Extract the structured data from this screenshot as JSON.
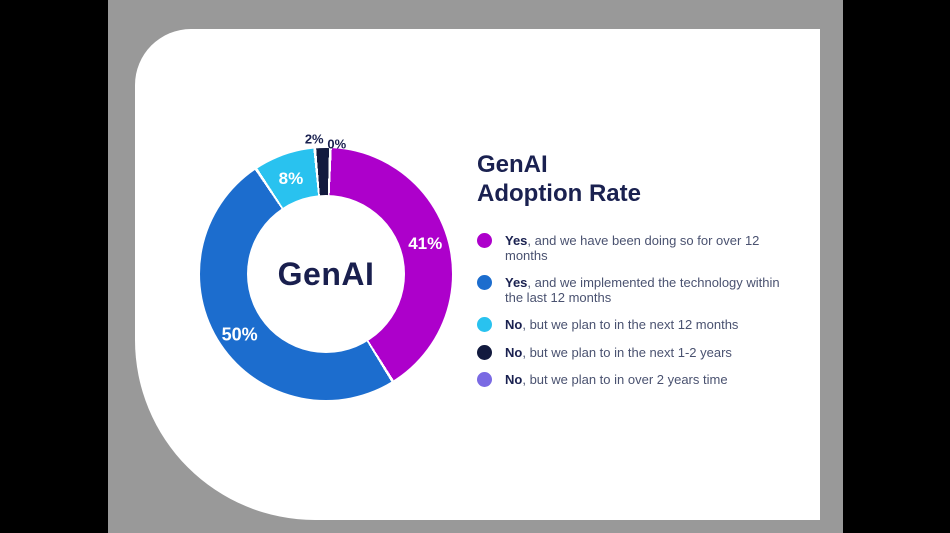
{
  "canvas": {
    "side_bar_color": "#000000",
    "background_color": "#999999",
    "card_color": "#ffffff"
  },
  "chart": {
    "title_line1": "GenAI",
    "title_line2": "Adoption Rate",
    "center_label": "GenAI"
  },
  "chart_data": {
    "type": "pie",
    "style": "donut",
    "title": "GenAI Adoption Rate",
    "center_label": "GenAI",
    "unit": "%",
    "legend_position": "right",
    "slices": [
      {
        "label": "Yes, and we have been doing so for over 12 months",
        "value": 41,
        "display": "41%",
        "color": "#AD00CB"
      },
      {
        "label": "Yes, and we implemented the technology within the last 12 months",
        "value": 50,
        "display": "50%",
        "color": "#1C6DCE"
      },
      {
        "label": "No, but we plan to in the next 12 months",
        "value": 8,
        "display": "8%",
        "color": "#29C2EF"
      },
      {
        "label": "No, but we plan to in the next 1-2 years",
        "value": 2,
        "display": "2%",
        "color": "#121A3E"
      },
      {
        "label": "No, but we plan to in over 2 years time",
        "value": 0,
        "display": "0%",
        "color": "#7A6AE3"
      }
    ]
  },
  "legend": {
    "items": [
      {
        "prefix": "Yes",
        "rest": ", and we have been doing so for over 12 months",
        "color": "#AD00CB"
      },
      {
        "prefix": "Yes",
        "rest": ", and we implemented the technology within the last 12 months",
        "color": "#1C6DCE"
      },
      {
        "prefix": "No",
        "rest": ", but we plan to in the next 12 months",
        "color": "#29C2EF"
      },
      {
        "prefix": "No",
        "rest": ", but we plan to in the next 1-2 years",
        "color": "#121A3E"
      },
      {
        "prefix": "No",
        "rest": ", but we plan to in over 2 years time",
        "color": "#7A6AE3"
      }
    ]
  }
}
